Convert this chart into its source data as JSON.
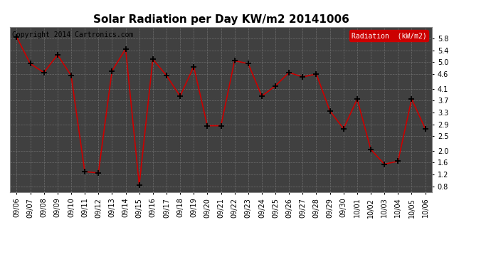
{
  "title": "Solar Radiation per Day KW/m2 20141006",
  "copyright_text": "Copyright 2014 Cartronics.com",
  "legend_label": "Radiation  (kW/m2)",
  "dates": [
    "09/06",
    "09/07",
    "09/08",
    "09/09",
    "09/10",
    "09/11",
    "09/12",
    "09/13",
    "09/14",
    "09/15",
    "09/16",
    "09/17",
    "09/18",
    "09/19",
    "09/20",
    "09/21",
    "09/22",
    "09/23",
    "09/24",
    "09/25",
    "09/26",
    "09/27",
    "09/28",
    "09/29",
    "09/30",
    "10/01",
    "10/02",
    "10/03",
    "10/04",
    "10/05",
    "10/06"
  ],
  "values": [
    5.85,
    4.95,
    4.65,
    5.25,
    4.55,
    1.3,
    1.25,
    4.7,
    5.45,
    0.85,
    5.1,
    4.55,
    3.85,
    4.85,
    2.85,
    2.85,
    5.05,
    4.95,
    3.85,
    4.2,
    4.65,
    4.5,
    4.6,
    3.35,
    2.75,
    3.75,
    2.05,
    1.55,
    1.65,
    3.75,
    2.75
  ],
  "ylim": [
    0.6,
    6.2
  ],
  "yticks": [
    0.8,
    1.2,
    1.6,
    2.0,
    2.5,
    2.9,
    3.3,
    3.7,
    4.1,
    4.6,
    5.0,
    5.4,
    5.8
  ],
  "line_color": "#cc0000",
  "marker": "+",
  "marker_color": "#000000",
  "bg_color": "#ffffff",
  "plot_bg_color": "#404040",
  "grid_color": "#808080",
  "legend_bg": "#cc0000",
  "legend_text_color": "#ffffff",
  "title_fontsize": 11,
  "copyright_fontsize": 7,
  "tick_fontsize": 7,
  "legend_fontsize": 7
}
